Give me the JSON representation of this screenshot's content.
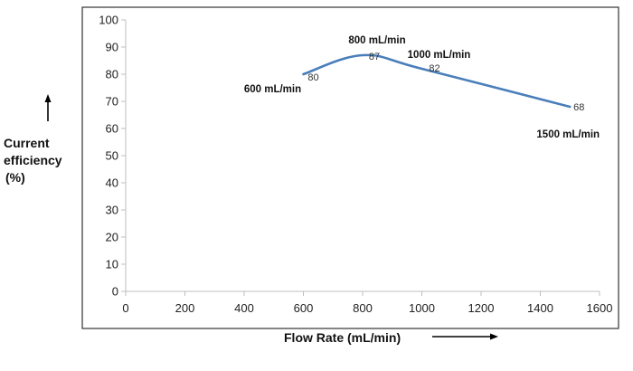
{
  "chart_data": {
    "type": "line",
    "xlabel": "Flow Rate (mL/min)",
    "ylabel": [
      "Current",
      "efficiency",
      "(%)"
    ],
    "xlim": [
      0,
      1600
    ],
    "ylim": [
      0,
      100
    ],
    "x_ticks": [
      0,
      200,
      400,
      600,
      800,
      1000,
      1200,
      1400,
      1600
    ],
    "y_ticks": [
      0,
      10,
      20,
      30,
      40,
      50,
      60,
      70,
      80,
      90,
      100
    ],
    "grid": false,
    "series": [
      {
        "x": [
          600,
          800,
          1000,
          1500
        ],
        "y": [
          80,
          87,
          82,
          68
        ],
        "data_labels": [
          "80",
          "87",
          "82",
          "68"
        ],
        "point_annotations": [
          "600 mL/min",
          "800 mL/min",
          "1000 mL/min",
          "1500 mL/min"
        ],
        "color": "#4a7ebb"
      }
    ]
  },
  "colors": {
    "line": "#4a7ebb",
    "axis": "#bfbfbf",
    "frame": "#333333"
  },
  "icons": {
    "y_arrow": "arrow-up-icon",
    "x_arrow": "arrow-right-icon"
  }
}
